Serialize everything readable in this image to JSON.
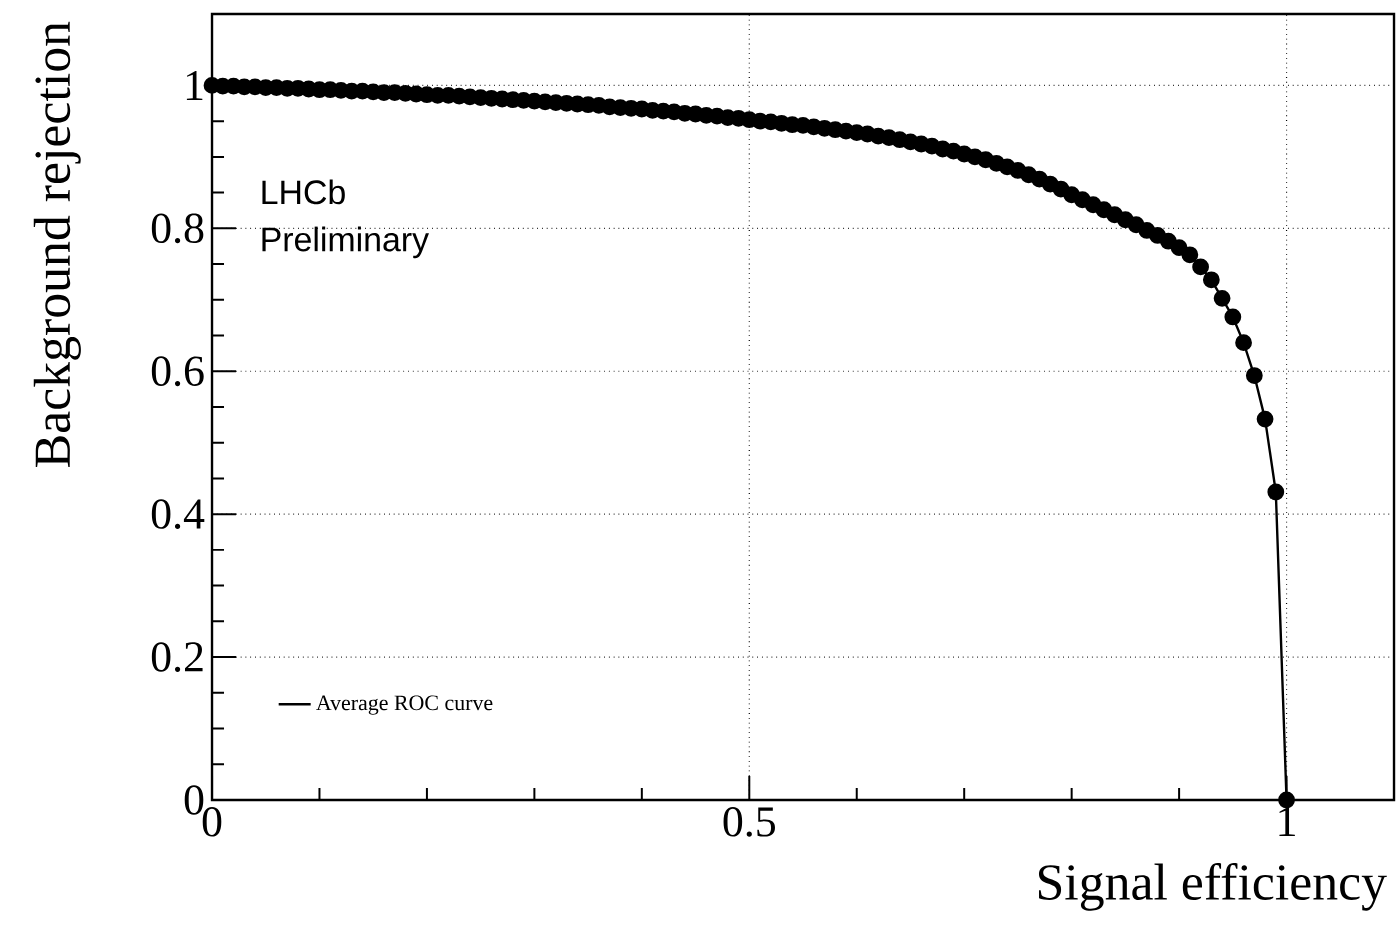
{
  "chart_data": {
    "type": "line",
    "xlabel": "Signal efficiency",
    "ylabel": "Background rejection",
    "annotations": [
      "LHCb",
      "Preliminary"
    ],
    "xlim": [
      0,
      1.1
    ],
    "ylim": [
      0,
      1.1
    ],
    "xticks": [
      0,
      0.5,
      1
    ],
    "yticks": [
      0,
      0.2,
      0.4,
      0.6,
      0.8,
      1
    ],
    "grid": true,
    "legend": "bottom left",
    "marker": "circle",
    "line_style": "solid",
    "x": [
      0,
      0.01,
      0.02,
      0.03,
      0.04,
      0.05,
      0.06,
      0.07,
      0.08,
      0.09,
      0.1,
      0.11,
      0.12,
      0.13,
      0.14,
      0.15,
      0.16,
      0.17,
      0.18,
      0.19,
      0.2,
      0.21,
      0.22,
      0.23,
      0.24,
      0.25,
      0.26,
      0.27,
      0.28,
      0.29,
      0.3,
      0.31,
      0.32,
      0.33,
      0.34,
      0.35,
      0.36,
      0.37,
      0.38,
      0.39,
      0.4,
      0.41,
      0.42,
      0.43,
      0.44,
      0.45,
      0.46,
      0.47,
      0.48,
      0.49,
      0.5,
      0.51,
      0.52,
      0.53,
      0.54,
      0.55,
      0.56,
      0.57,
      0.58,
      0.59,
      0.6,
      0.61,
      0.62,
      0.63,
      0.64,
      0.65,
      0.66,
      0.67,
      0.68,
      0.69,
      0.7,
      0.71,
      0.72,
      0.73,
      0.74,
      0.75,
      0.76,
      0.77,
      0.78,
      0.79,
      0.8,
      0.81,
      0.82,
      0.83,
      0.84,
      0.85,
      0.86,
      0.87,
      0.88,
      0.89,
      0.9,
      0.91,
      0.92,
      0.93,
      0.94,
      0.95,
      0.96,
      0.97,
      0.98,
      0.99,
      1.0
    ],
    "series": [
      {
        "name": "Average ROC curve",
        "color": "#000000",
        "values": [
          1.0,
          0.999,
          0.999,
          0.998,
          0.998,
          0.997,
          0.997,
          0.996,
          0.996,
          0.995,
          0.994,
          0.994,
          0.993,
          0.992,
          0.992,
          0.991,
          0.99,
          0.99,
          0.989,
          0.988,
          0.987,
          0.986,
          0.986,
          0.985,
          0.984,
          0.983,
          0.982,
          0.981,
          0.98,
          0.979,
          0.978,
          0.977,
          0.976,
          0.975,
          0.974,
          0.973,
          0.972,
          0.97,
          0.969,
          0.968,
          0.967,
          0.965,
          0.964,
          0.963,
          0.961,
          0.96,
          0.958,
          0.957,
          0.955,
          0.954,
          0.952,
          0.95,
          0.949,
          0.947,
          0.945,
          0.944,
          0.942,
          0.94,
          0.938,
          0.936,
          0.934,
          0.932,
          0.929,
          0.927,
          0.924,
          0.921,
          0.918,
          0.915,
          0.911,
          0.908,
          0.904,
          0.9,
          0.896,
          0.891,
          0.886,
          0.881,
          0.875,
          0.869,
          0.862,
          0.855,
          0.847,
          0.84,
          0.833,
          0.826,
          0.819,
          0.812,
          0.805,
          0.797,
          0.79,
          0.782,
          0.773,
          0.763,
          0.746,
          0.728,
          0.702,
          0.676,
          0.64,
          0.594,
          0.533,
          0.431,
          0.0
        ]
      }
    ]
  }
}
